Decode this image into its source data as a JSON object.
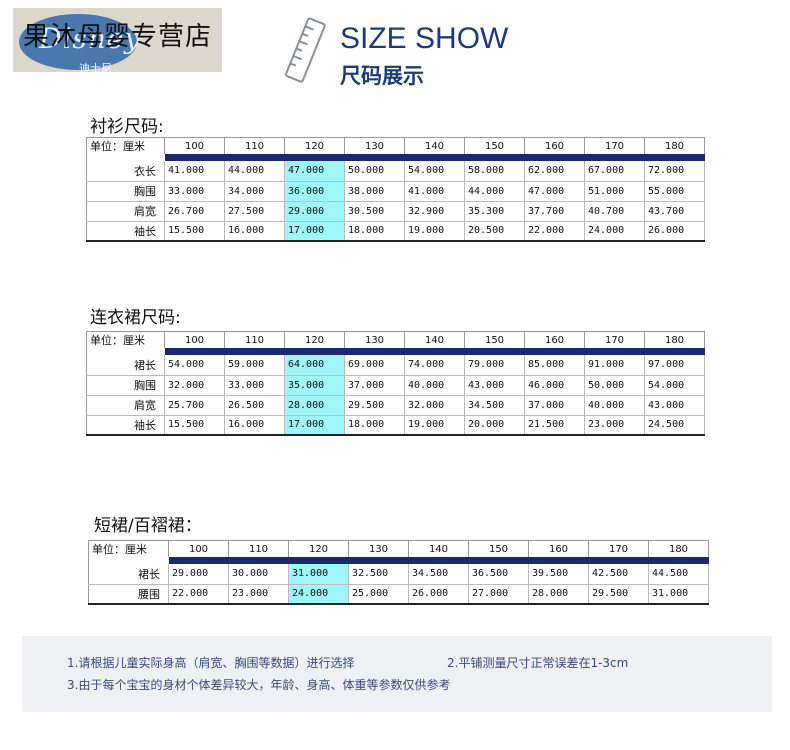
{
  "shop": {
    "name": "果沐母婴专营店",
    "logo_script": "Disney",
    "logo_sub": "迪士尼"
  },
  "header": {
    "title_en": "SIZE SHOW",
    "title_cn": "尺码展示",
    "icon": "ruler-icon"
  },
  "colors": {
    "header_blue": "#1b3b78",
    "bar_navy": "#1b2a6b",
    "highlight": "#9ef6f8",
    "notes_bg": "#eef0f4"
  },
  "tables": [
    {
      "title": "衬衫尺码:",
      "unit_label": "单位：厘米",
      "sizes": [
        "100",
        "110",
        "120",
        "130",
        "140",
        "150",
        "160",
        "170",
        "180"
      ],
      "highlight_col": 2,
      "rows": [
        {
          "label": "衣长",
          "values": [
            "41.000",
            "44.000",
            "47.000",
            "50.000",
            "54.000",
            "58.000",
            "62.000",
            "67.000",
            "72.000"
          ]
        },
        {
          "label": "胸围",
          "values": [
            "33.000",
            "34.000",
            "36.000",
            "38.000",
            "41.000",
            "44.000",
            "47.000",
            "51.000",
            "55.000"
          ]
        },
        {
          "label": "肩宽",
          "values": [
            "26.700",
            "27.500",
            "29.000",
            "30.500",
            "32.900",
            "35.300",
            "37.700",
            "40.700",
            "43.700"
          ]
        },
        {
          "label": "袖长",
          "values": [
            "15.500",
            "16.000",
            "17.000",
            "18.000",
            "19.000",
            "20.500",
            "22.000",
            "24.000",
            "26.000"
          ]
        }
      ]
    },
    {
      "title": "连衣裙尺码:",
      "unit_label": "单位：厘米",
      "sizes": [
        "100",
        "110",
        "120",
        "130",
        "140",
        "150",
        "160",
        "170",
        "180"
      ],
      "highlight_col": 2,
      "rows": [
        {
          "label": "裙长",
          "values": [
            "54.000",
            "59.000",
            "64.000",
            "69.000",
            "74.000",
            "79.000",
            "85.000",
            "91.000",
            "97.000"
          ]
        },
        {
          "label": "胸围",
          "values": [
            "32.000",
            "33.000",
            "35.000",
            "37.000",
            "40.000",
            "43.000",
            "46.000",
            "50.000",
            "54.000"
          ]
        },
        {
          "label": "肩宽",
          "values": [
            "25.700",
            "26.500",
            "28.000",
            "29.500",
            "32.000",
            "34.500",
            "37.000",
            "40.000",
            "43.000"
          ]
        },
        {
          "label": "袖长",
          "values": [
            "15.500",
            "16.000",
            "17.000",
            "18.000",
            "19.000",
            "20.000",
            "21.500",
            "23.000",
            "24.500"
          ]
        }
      ]
    },
    {
      "title": "短裙/百褶裙：",
      "unit_label": "单位：厘米",
      "sizes": [
        "100",
        "110",
        "120",
        "130",
        "140",
        "150",
        "160",
        "170",
        "180"
      ],
      "highlight_col": 2,
      "rows": [
        {
          "label": "裙长",
          "values": [
            "29.000",
            "30.000",
            "31.000",
            "32.500",
            "34.500",
            "36.500",
            "39.500",
            "42.500",
            "44.500"
          ]
        },
        {
          "label": "腰围",
          "values": [
            "22.000",
            "23.000",
            "24.000",
            "25.000",
            "26.000",
            "27.000",
            "28.000",
            "29.500",
            "31.000"
          ]
        }
      ]
    }
  ],
  "notes": [
    "1.请根据儿童实际身高（肩宽、胸围等数据）进行选择",
    "2.平铺测量尺寸正常误差在1-3cm",
    "3.由于每个宝宝的身材个体差异较大，年龄、身高、体重等参数仅供参考"
  ]
}
